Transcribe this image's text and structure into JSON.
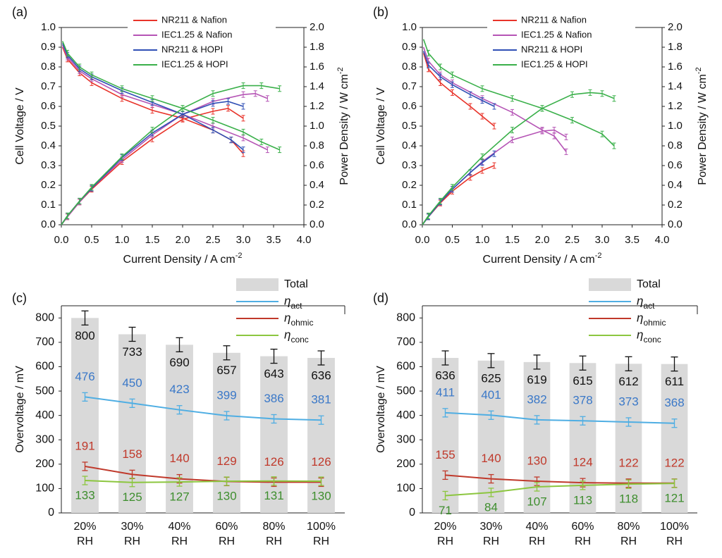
{
  "chart_data": [
    {
      "panel": "(a)",
      "type": "line",
      "xlabel": "Current Density / A cm",
      "xlabel_sup": "-2",
      "ylabel": "Cell Voltage / V",
      "y2label": "Power Density / W cm",
      "y2label_sup": "-2",
      "xlim": [
        0,
        4
      ],
      "ylim": [
        0,
        1
      ],
      "y2lim": [
        0,
        2
      ],
      "xticks": [
        "0.0",
        "0.5",
        "1.0",
        "1.5",
        "2.0",
        "2.5",
        "3.0",
        "3.5",
        "4.0"
      ],
      "yticks": [
        "0.0",
        "0.1",
        "0.2",
        "0.3",
        "0.4",
        "0.5",
        "0.6",
        "0.7",
        "0.8",
        "0.9",
        "1.0"
      ],
      "y2ticks": [
        "0.0",
        "0.2",
        "0.4",
        "0.6",
        "0.8",
        "1.0",
        "1.2",
        "1.4",
        "1.6",
        "1.8",
        "2.0"
      ],
      "legend_position": "top-center",
      "series": [
        {
          "name": "NR211 & Nafion",
          "color": "#e8332a",
          "voltage": [
            [
              0.02,
              0.9
            ],
            [
              0.1,
              0.84
            ],
            [
              0.3,
              0.77
            ],
            [
              0.5,
              0.72
            ],
            [
              1.0,
              0.64
            ],
            [
              1.5,
              0.58
            ],
            [
              2.0,
              0.54
            ],
            [
              2.5,
              0.48
            ],
            [
              2.8,
              0.43
            ],
            [
              3.0,
              0.36
            ]
          ],
          "power": [
            [
              0,
              0
            ],
            [
              0.1,
              0.08
            ],
            [
              0.3,
              0.23
            ],
            [
              0.5,
              0.36
            ],
            [
              1.0,
              0.64
            ],
            [
              1.5,
              0.87
            ],
            [
              2.0,
              1.07
            ],
            [
              2.5,
              1.15
            ],
            [
              2.75,
              1.18
            ],
            [
              3.0,
              1.08
            ]
          ]
        },
        {
          "name": "IEC1.25 & Nafion",
          "color": "#b554b5",
          "voltage": [
            [
              0.02,
              0.91
            ],
            [
              0.1,
              0.85
            ],
            [
              0.3,
              0.78
            ],
            [
              0.5,
              0.74
            ],
            [
              1.0,
              0.66
            ],
            [
              1.5,
              0.61
            ],
            [
              2.0,
              0.56
            ],
            [
              2.5,
              0.5
            ],
            [
              3.0,
              0.44
            ],
            [
              3.4,
              0.38
            ]
          ],
          "power": [
            [
              0,
              0
            ],
            [
              0.1,
              0.08
            ],
            [
              0.3,
              0.23
            ],
            [
              0.5,
              0.37
            ],
            [
              1.0,
              0.66
            ],
            [
              1.5,
              0.91
            ],
            [
              2.0,
              1.12
            ],
            [
              2.5,
              1.25
            ],
            [
              3.0,
              1.32
            ],
            [
              3.2,
              1.33
            ],
            [
              3.4,
              1.28
            ]
          ]
        },
        {
          "name": "NR211 & HOPI",
          "color": "#2f4fb5",
          "voltage": [
            [
              0.02,
              0.92
            ],
            [
              0.1,
              0.86
            ],
            [
              0.3,
              0.79
            ],
            [
              0.5,
              0.75
            ],
            [
              1.0,
              0.68
            ],
            [
              1.5,
              0.62
            ],
            [
              2.0,
              0.56
            ],
            [
              2.5,
              0.48
            ],
            [
              2.8,
              0.43
            ],
            [
              3.0,
              0.38
            ]
          ],
          "power": [
            [
              0,
              0
            ],
            [
              0.1,
              0.09
            ],
            [
              0.3,
              0.24
            ],
            [
              0.5,
              0.37
            ],
            [
              1.0,
              0.68
            ],
            [
              1.5,
              0.93
            ],
            [
              2.0,
              1.12
            ],
            [
              2.5,
              1.23
            ],
            [
              2.75,
              1.25
            ],
            [
              3.0,
              1.2
            ]
          ]
        },
        {
          "name": "IEC1.25 & HOPI",
          "color": "#3ab04a",
          "voltage": [
            [
              0.02,
              0.93
            ],
            [
              0.1,
              0.87
            ],
            [
              0.3,
              0.8
            ],
            [
              0.5,
              0.76
            ],
            [
              1.0,
              0.69
            ],
            [
              1.5,
              0.64
            ],
            [
              2.0,
              0.59
            ],
            [
              2.5,
              0.53
            ],
            [
              3.0,
              0.47
            ],
            [
              3.3,
              0.42
            ],
            [
              3.6,
              0.38
            ]
          ],
          "power": [
            [
              0,
              0
            ],
            [
              0.1,
              0.09
            ],
            [
              0.3,
              0.24
            ],
            [
              0.5,
              0.38
            ],
            [
              1.0,
              0.69
            ],
            [
              1.5,
              0.96
            ],
            [
              2.0,
              1.18
            ],
            [
              2.5,
              1.33
            ],
            [
              3.0,
              1.41
            ],
            [
              3.3,
              1.41
            ],
            [
              3.6,
              1.38
            ]
          ]
        }
      ]
    },
    {
      "panel": "(b)",
      "type": "line",
      "xlabel": "Current Density / A cm",
      "xlabel_sup": "-2",
      "ylabel": "Cell Voltage / V",
      "y2label": "Power Density / W cm",
      "y2label_sup": "-2",
      "xlim": [
        0,
        4
      ],
      "ylim": [
        0,
        1
      ],
      "y2lim": [
        0,
        2
      ],
      "xticks": [
        "0.0",
        "0.5",
        "1.0",
        "1.5",
        "2.0",
        "2.5",
        "3.0",
        "3.5",
        "4.0"
      ],
      "yticks": [
        "0.0",
        "0.1",
        "0.2",
        "0.3",
        "0.4",
        "0.5",
        "0.6",
        "0.7",
        "0.8",
        "0.9",
        "1.0"
      ],
      "y2ticks": [
        "0.0",
        "0.2",
        "0.4",
        "0.6",
        "0.8",
        "1.0",
        "1.2",
        "1.4",
        "1.6",
        "1.8",
        "2.0"
      ],
      "legend_position": "top-center",
      "series": [
        {
          "name": "NR211 & Nafion",
          "color": "#e8332a",
          "voltage": [
            [
              0.02,
              0.87
            ],
            [
              0.1,
              0.79
            ],
            [
              0.3,
              0.72
            ],
            [
              0.5,
              0.67
            ],
            [
              0.8,
              0.6
            ],
            [
              1.0,
              0.55
            ],
            [
              1.2,
              0.5
            ]
          ],
          "power": [
            [
              0,
              0
            ],
            [
              0.1,
              0.08
            ],
            [
              0.3,
              0.22
            ],
            [
              0.5,
              0.34
            ],
            [
              0.8,
              0.48
            ],
            [
              1.0,
              0.55
            ],
            [
              1.2,
              0.6
            ]
          ]
        },
        {
          "name": "IEC1.25 & Nafion",
          "color": "#b554b5",
          "voltage": [
            [
              0.02,
              0.9
            ],
            [
              0.1,
              0.83
            ],
            [
              0.3,
              0.76
            ],
            [
              0.5,
              0.72
            ],
            [
              1.0,
              0.64
            ],
            [
              1.5,
              0.57
            ],
            [
              2.0,
              0.48
            ],
            [
              2.2,
              0.45
            ],
            [
              2.4,
              0.37
            ]
          ],
          "power": [
            [
              0,
              0
            ],
            [
              0.1,
              0.08
            ],
            [
              0.3,
              0.23
            ],
            [
              0.5,
              0.36
            ],
            [
              1.0,
              0.64
            ],
            [
              1.5,
              0.86
            ],
            [
              2.0,
              0.95
            ],
            [
              2.2,
              0.96
            ],
            [
              2.4,
              0.89
            ]
          ]
        },
        {
          "name": "NR211 & HOPI",
          "color": "#2f4fb5",
          "voltage": [
            [
              0.02,
              0.88
            ],
            [
              0.1,
              0.81
            ],
            [
              0.3,
              0.75
            ],
            [
              0.5,
              0.71
            ],
            [
              0.8,
              0.66
            ],
            [
              1.0,
              0.63
            ],
            [
              1.2,
              0.6
            ]
          ],
          "power": [
            [
              0,
              0
            ],
            [
              0.1,
              0.08
            ],
            [
              0.3,
              0.23
            ],
            [
              0.5,
              0.36
            ],
            [
              0.8,
              0.53
            ],
            [
              1.0,
              0.63
            ],
            [
              1.2,
              0.72
            ]
          ]
        },
        {
          "name": "IEC1.25 & HOPI",
          "color": "#3ab04a",
          "voltage": [
            [
              0.02,
              0.94
            ],
            [
              0.1,
              0.87
            ],
            [
              0.3,
              0.8
            ],
            [
              0.5,
              0.76
            ],
            [
              1.0,
              0.69
            ],
            [
              1.5,
              0.64
            ],
            [
              2.0,
              0.59
            ],
            [
              2.5,
              0.53
            ],
            [
              3.0,
              0.46
            ],
            [
              3.2,
              0.4
            ]
          ],
          "power": [
            [
              0,
              0
            ],
            [
              0.1,
              0.09
            ],
            [
              0.3,
              0.24
            ],
            [
              0.5,
              0.38
            ],
            [
              1.0,
              0.69
            ],
            [
              1.5,
              0.96
            ],
            [
              2.0,
              1.18
            ],
            [
              2.5,
              1.32
            ],
            [
              2.8,
              1.34
            ],
            [
              3.0,
              1.33
            ],
            [
              3.2,
              1.28
            ]
          ]
        }
      ]
    },
    {
      "panel": "(c)",
      "type": "bar",
      "ylabel": "Overvoltage / mV",
      "ylim": [
        0,
        850
      ],
      "yticks": [
        "0",
        "100",
        "200",
        "300",
        "400",
        "500",
        "600",
        "700",
        "800"
      ],
      "categories": [
        "20%",
        "30%",
        "40%",
        "60%",
        "80%",
        "100%"
      ],
      "category_sub": "RH",
      "legend_position": "top-right",
      "total": {
        "name": "Total",
        "color": "#d9d9d9",
        "values": [
          800,
          733,
          690,
          657,
          643,
          636
        ]
      },
      "lines": [
        {
          "name": "η",
          "sub": "act",
          "color": "#4faee3",
          "label_color": "#3a78c8",
          "values": [
            476,
            450,
            423,
            399,
            386,
            381
          ]
        },
        {
          "name": "η",
          "sub": "ohmic",
          "color": "#c0392b",
          "label_color": "#c0392b",
          "values": [
            191,
            158,
            140,
            129,
            126,
            126
          ]
        },
        {
          "name": "η",
          "sub": "conc",
          "color": "#8cc63f",
          "label_color": "#3e8e2e",
          "values": [
            133,
            125,
            127,
            130,
            131,
            130
          ]
        }
      ]
    },
    {
      "panel": "(d)",
      "type": "bar",
      "ylabel": "Overvoltage / mV",
      "ylim": [
        0,
        850
      ],
      "yticks": [
        "0",
        "100",
        "200",
        "300",
        "400",
        "500",
        "600",
        "700",
        "800"
      ],
      "categories": [
        "20%",
        "30%",
        "40%",
        "60%",
        "80%",
        "100%"
      ],
      "category_sub": "RH",
      "legend_position": "top-right",
      "total": {
        "name": "Total",
        "color": "#d9d9d9",
        "values": [
          636,
          625,
          619,
          615,
          612,
          611
        ]
      },
      "lines": [
        {
          "name": "η",
          "sub": "act",
          "color": "#4faee3",
          "label_color": "#3a78c8",
          "values": [
            411,
            401,
            382,
            378,
            373,
            368
          ]
        },
        {
          "name": "η",
          "sub": "ohmic",
          "color": "#c0392b",
          "label_color": "#c0392b",
          "values": [
            155,
            140,
            130,
            124,
            122,
            122
          ]
        },
        {
          "name": "η",
          "sub": "conc",
          "color": "#8cc63f",
          "label_color": "#3e8e2e",
          "values": [
            71,
            84,
            107,
            113,
            118,
            121
          ]
        }
      ]
    }
  ]
}
